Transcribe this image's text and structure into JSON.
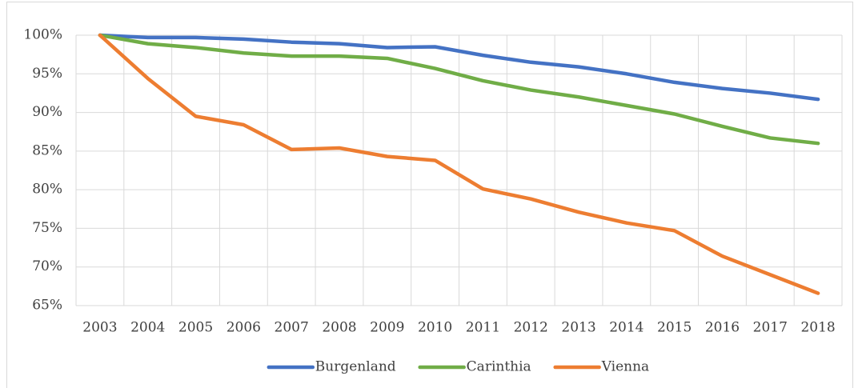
{
  "chart_data": {
    "type": "line",
    "categories": [
      "2003",
      "2004",
      "2005",
      "2006",
      "2007",
      "2008",
      "2009",
      "2010",
      "2011",
      "2012",
      "2013",
      "2014",
      "2015",
      "2016",
      "2017",
      "2018"
    ],
    "series": [
      {
        "name": "Burgenland",
        "color": "#4472c4",
        "values": [
          100,
          99.7,
          99.7,
          99.5,
          99.1,
          98.9,
          98.4,
          98.5,
          97.4,
          96.5,
          95.9,
          95.0,
          93.9,
          93.1,
          92.5,
          91.7
        ]
      },
      {
        "name": "Carinthia",
        "color": "#70ad47",
        "values": [
          100,
          98.9,
          98.4,
          97.7,
          97.3,
          97.3,
          97.0,
          95.7,
          94.1,
          92.9,
          92.0,
          90.9,
          89.8,
          88.2,
          86.7,
          86.0
        ]
      },
      {
        "name": "Vienna",
        "color": "#ed7d31",
        "values": [
          100,
          94.4,
          89.5,
          88.4,
          85.2,
          85.4,
          84.3,
          83.8,
          80.1,
          78.8,
          77.1,
          75.7,
          74.7,
          71.4,
          69.0,
          66.6
        ]
      }
    ],
    "ylim": [
      65,
      100
    ],
    "yticks": [
      {
        "value": 65,
        "label": "65%"
      },
      {
        "value": 70,
        "label": "70%"
      },
      {
        "value": 75,
        "label": "75%"
      },
      {
        "value": 80,
        "label": "80%"
      },
      {
        "value": 85,
        "label": "85%"
      },
      {
        "value": 90,
        "label": "90%"
      },
      {
        "value": 95,
        "label": "95%"
      },
      {
        "value": 100,
        "label": "100%"
      }
    ],
    "grid": true,
    "legend": "bottom"
  }
}
